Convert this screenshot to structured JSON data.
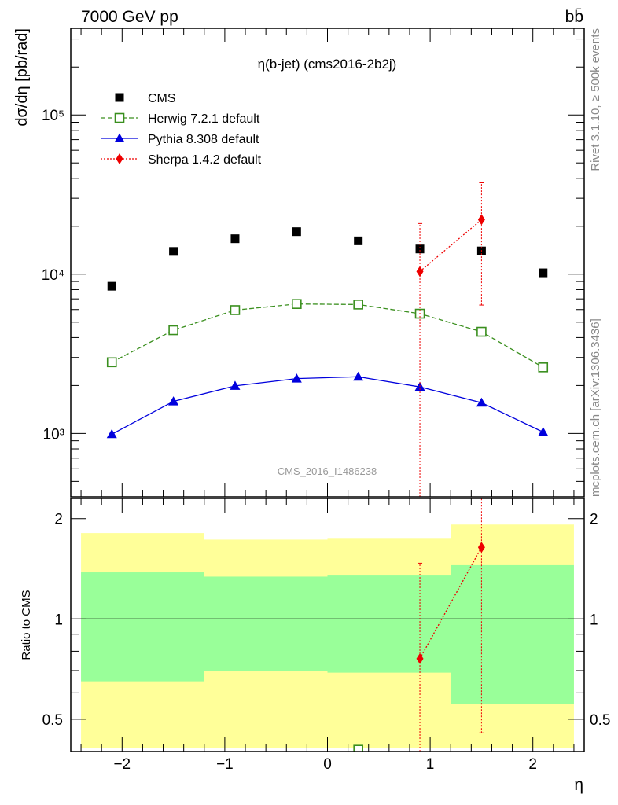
{
  "header": {
    "left": "7000 GeV pp",
    "right": "bb̄"
  },
  "side_labels": {
    "rivet": "Rivet 3.1.10, ≥ 500k events",
    "mcplots": "mcplots.cern.ch [arXiv:1306.3436]"
  },
  "chart_data": [
    {
      "type": "scatter",
      "panel": "main",
      "title": "η(b-jet) (cms2016-2b2j)",
      "watermark": "CMS_2016_I1486238",
      "ylabel": "dσ/dη [pb/rad]",
      "xlabel": "",
      "xlim": [
        -2.5,
        2.5
      ],
      "ylim": [
        400,
        350000
      ],
      "yscale": "log",
      "yticks": [
        {
          "value": 1000,
          "label": "10³"
        },
        {
          "value": 10000,
          "label": "10⁴"
        },
        {
          "value": 100000,
          "label": "10⁵"
        }
      ],
      "legend_position": "top-left",
      "series": [
        {
          "name": "CMS",
          "color": "#000000",
          "marker": "square-filled",
          "line": "none",
          "x": [
            -2.1,
            -1.5,
            -0.9,
            -0.3,
            0.3,
            0.9,
            1.5,
            2.1
          ],
          "y": [
            8400,
            13900,
            16700,
            18500,
            16200,
            14400,
            14000,
            10200
          ]
        },
        {
          "name": "Herwig 7.2.1 default",
          "color": "#3a8f1e",
          "marker": "square-open",
          "line": "dashed",
          "x": [
            -2.1,
            -1.5,
            -0.9,
            -0.3,
            0.3,
            0.9,
            1.5,
            2.1
          ],
          "y": [
            2800,
            4450,
            5950,
            6500,
            6450,
            5650,
            4350,
            2600
          ]
        },
        {
          "name": "Pythia 8.308 default",
          "color": "#0000dd",
          "marker": "triangle-filled",
          "line": "solid",
          "x": [
            -2.1,
            -1.5,
            -0.9,
            -0.3,
            0.3,
            0.9,
            1.5,
            2.1
          ],
          "y": [
            990,
            1590,
            1990,
            2210,
            2270,
            1960,
            1560,
            1020
          ]
        },
        {
          "name": "Sherpa 1.4.2 default",
          "color": "#ee0000",
          "marker": "diamond-filled",
          "line": "dotted",
          "x": [
            0.9,
            1.5
          ],
          "y": [
            10400,
            22000
          ],
          "yerr_low": [
            400,
            6400
          ],
          "yerr_high": [
            20800,
            37500
          ]
        }
      ]
    },
    {
      "type": "scatter",
      "panel": "ratio",
      "ylabel": "Ratio to CMS",
      "xlabel": "η",
      "xlim": [
        -2.5,
        2.5
      ],
      "ylim": [
        0.4,
        2.3
      ],
      "yscale": "log",
      "yticks": [
        {
          "value": 0.5,
          "label": "0.5"
        },
        {
          "value": 1,
          "label": "1"
        },
        {
          "value": 2,
          "label": "2"
        }
      ],
      "xticks": [
        {
          "value": -2,
          "label": "−2"
        },
        {
          "value": -1,
          "label": "−1"
        },
        {
          "value": 0,
          "label": "0"
        },
        {
          "value": 1,
          "label": "1"
        },
        {
          "value": 2,
          "label": "2"
        }
      ],
      "bands": [
        {
          "x": [
            -2.4,
            -1.2
          ],
          "yellow": [
            0.41,
            1.81
          ],
          "green": [
            0.65,
            1.38
          ]
        },
        {
          "x": [
            -1.2,
            0.0
          ],
          "yellow": [
            0.41,
            1.73
          ],
          "green": [
            0.7,
            1.34
          ]
        },
        {
          "x": [
            0.0,
            1.2
          ],
          "yellow": [
            0.41,
            1.75
          ],
          "green": [
            0.69,
            1.35
          ]
        },
        {
          "x": [
            1.2,
            2.4
          ],
          "yellow": [
            0.41,
            1.92
          ],
          "green": [
            0.555,
            1.45
          ]
        }
      ],
      "series": [
        {
          "name": "Sherpa 1.4.2 default",
          "color": "#ee0000",
          "marker": "diamond-filled",
          "line": "dotted",
          "x": [
            0.9,
            1.5
          ],
          "y": [
            0.76,
            1.64
          ],
          "yerr_low": [
            0.4,
            0.455
          ],
          "yerr_high": [
            1.47,
            2.3
          ]
        },
        {
          "name": "Herwig 7.2.1 default",
          "color": "#3a8f1e",
          "marker": "square-open",
          "line": "none",
          "x": [
            0.3
          ],
          "y": [
            0.405
          ]
        }
      ]
    }
  ]
}
